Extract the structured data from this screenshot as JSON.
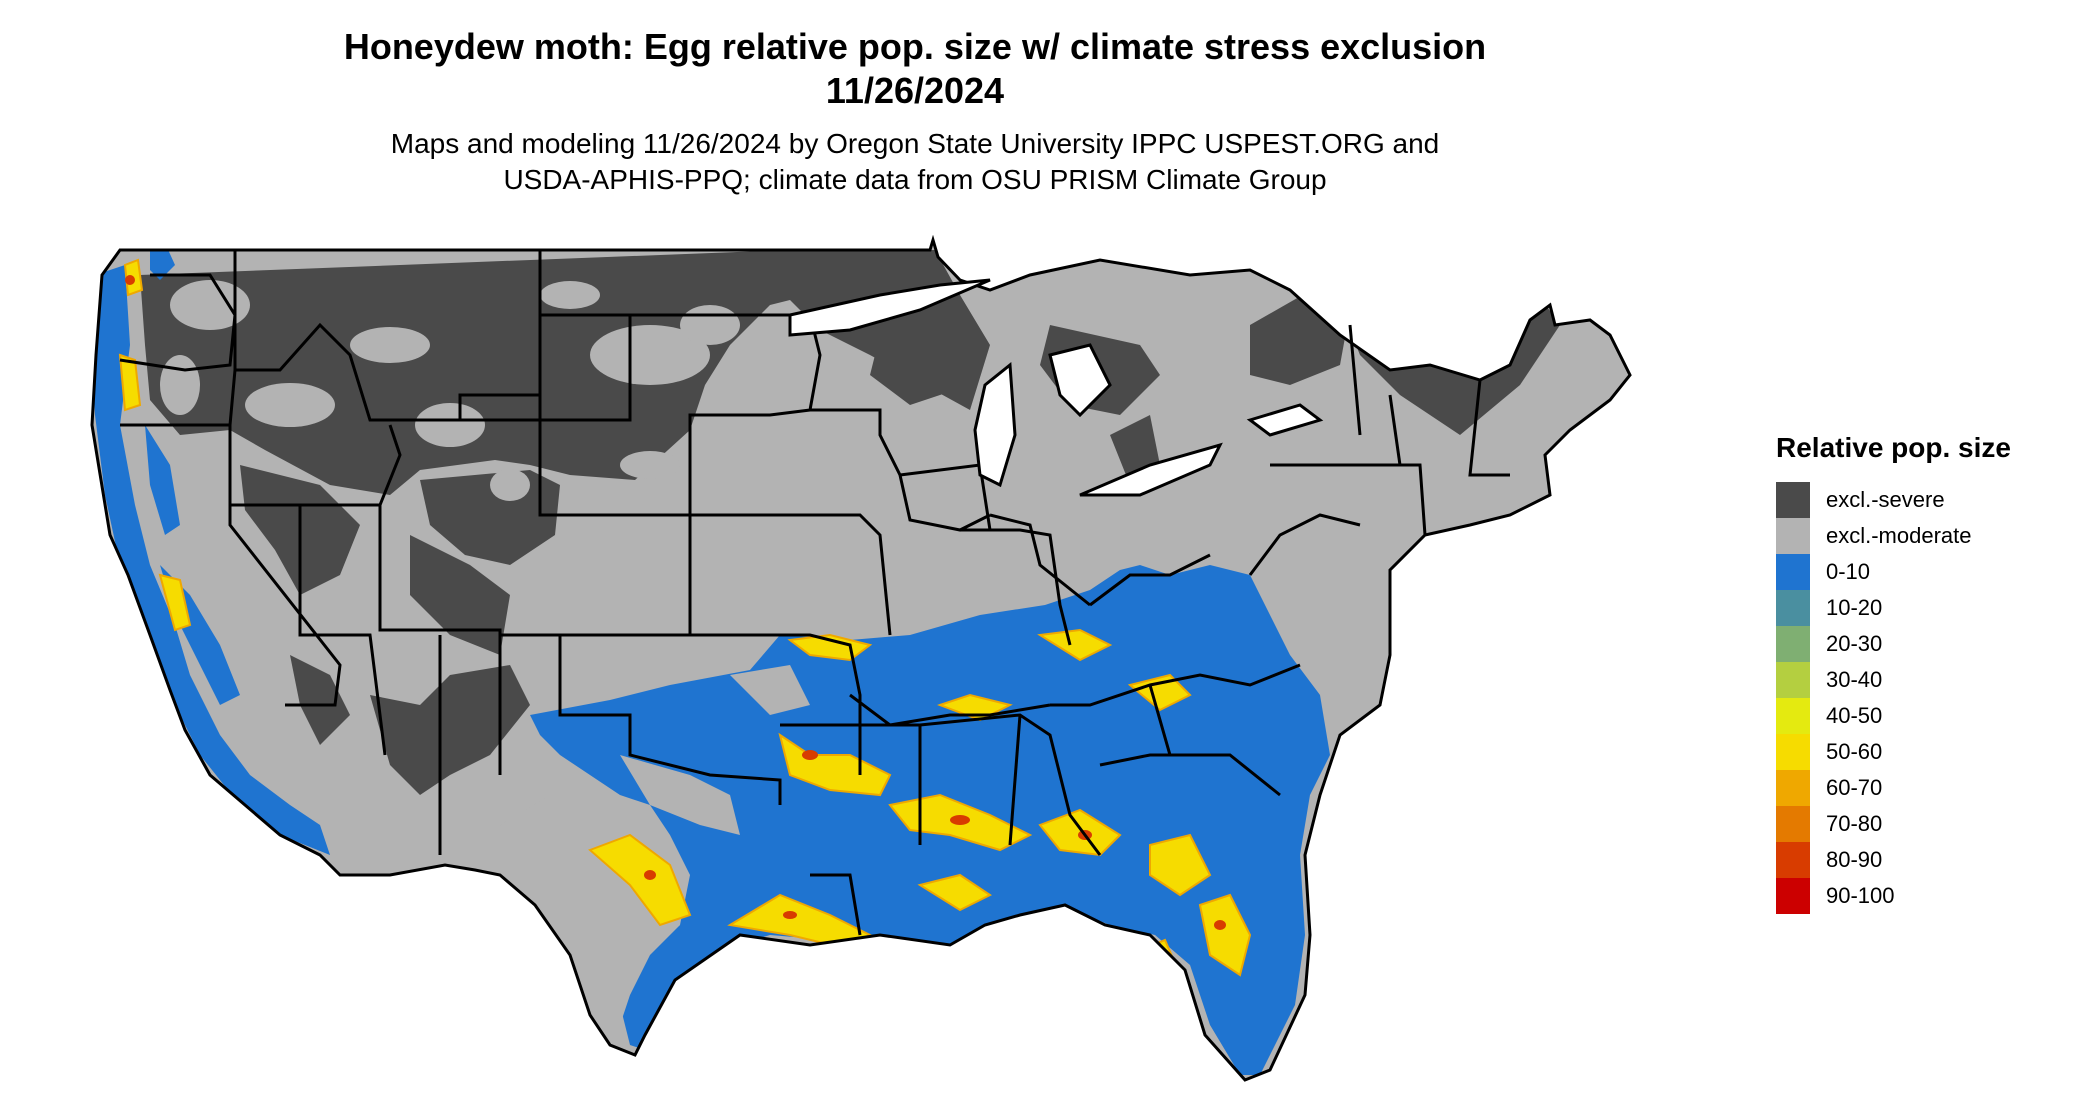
{
  "title_line1": "Honeydew moth: Egg relative pop. size w/ climate stress exclusion",
  "title_line2": "11/26/2024",
  "subtitle_line1": "Maps and modeling 11/26/2024 by Oregon State University IPPC USPEST.ORG and",
  "subtitle_line2": "USDA-APHIS-PPQ; climate data from OSU PRISM Climate Group",
  "legend": {
    "title": "Relative pop. size",
    "items": [
      {
        "label": "excl.-severe",
        "color": "#4a4a4a"
      },
      {
        "label": "excl.-moderate",
        "color": "#b3b3b3"
      },
      {
        "label": "0-10",
        "color": "#1f74d0"
      },
      {
        "label": "10-20",
        "color": "#4a8fa0"
      },
      {
        "label": "20-30",
        "color": "#7faf72"
      },
      {
        "label": "30-40",
        "color": "#b4cf40"
      },
      {
        "label": "40-50",
        "color": "#e4ea10"
      },
      {
        "label": "50-60",
        "color": "#f6dc00"
      },
      {
        "label": "60-70",
        "color": "#efa800"
      },
      {
        "label": "70-80",
        "color": "#e47a00"
      },
      {
        "label": "80-90",
        "color": "#d83c00"
      },
      {
        "label": "90-100",
        "color": "#cc0000"
      }
    ]
  }
}
